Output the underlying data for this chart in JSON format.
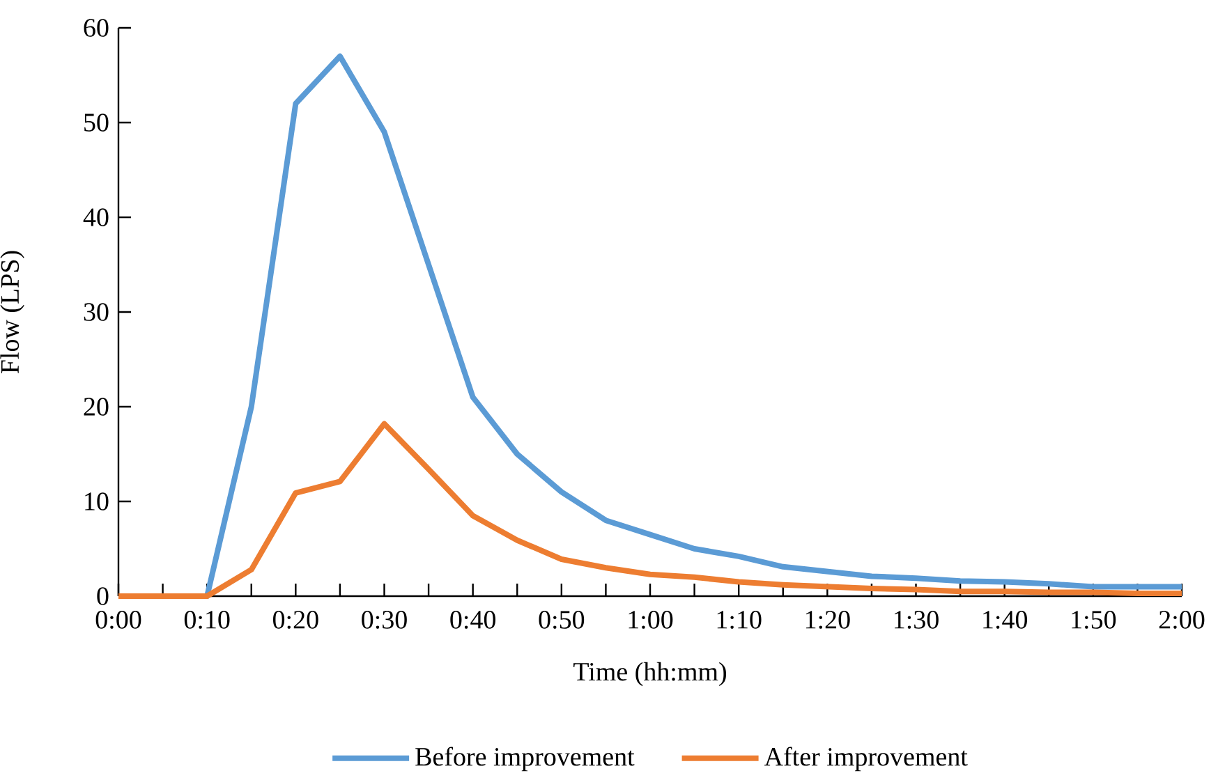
{
  "chart_data": {
    "type": "line",
    "xlabel": "Time (hh:mm)",
    "ylabel": "Flow (LPS)",
    "x": [
      0,
      0.08333,
      0.16667,
      0.25,
      0.33333,
      0.41667,
      0.5,
      0.58333,
      0.66667,
      0.75,
      0.83333,
      0.91667,
      1,
      1.08333,
      1.16667,
      1.25,
      1.33333,
      1.41667,
      1.5,
      1.58333,
      1.66667,
      1.75,
      1.83333,
      1.91667,
      2
    ],
    "series": [
      {
        "name": "Before improvement",
        "color": "#5b9bd5",
        "values": [
          0,
          0,
          0,
          20,
          52,
          57,
          49,
          35,
          21,
          15,
          11,
          8,
          6.5,
          5,
          4.2,
          3.1,
          2.6,
          2.1,
          1.9,
          1.6,
          1.5,
          1.3,
          1,
          1,
          1
        ]
      },
      {
        "name": "After improvement",
        "color": "#ed7d31",
        "values": [
          0,
          0,
          0,
          2.8,
          10.9,
          12.1,
          18.2,
          13.4,
          8.5,
          5.9,
          3.9,
          3,
          2.3,
          2,
          1.5,
          1.2,
          1,
          0.8,
          0.7,
          0.5,
          0.5,
          0.4,
          0.4,
          0.3,
          0.3
        ]
      }
    ],
    "xlim": [
      0,
      2
    ],
    "ylim": [
      0,
      60
    ],
    "xticks": [
      {
        "value": 0,
        "label": "0:00"
      },
      {
        "value": 0.08333,
        "label": null
      },
      {
        "value": 0.16667,
        "label": "0:10"
      },
      {
        "value": 0.25,
        "label": null
      },
      {
        "value": 0.33333,
        "label": "0:20"
      },
      {
        "value": 0.41667,
        "label": null
      },
      {
        "value": 0.5,
        "label": "0:30"
      },
      {
        "value": 0.58333,
        "label": null
      },
      {
        "value": 0.66667,
        "label": "0:40"
      },
      {
        "value": 0.75,
        "label": null
      },
      {
        "value": 0.83333,
        "label": "0:50"
      },
      {
        "value": 0.91667,
        "label": null
      },
      {
        "value": 1,
        "label": "1:00"
      },
      {
        "value": 1.08333,
        "label": null
      },
      {
        "value": 1.16667,
        "label": "1:10"
      },
      {
        "value": 1.25,
        "label": null
      },
      {
        "value": 1.33333,
        "label": "1:20"
      },
      {
        "value": 1.41667,
        "label": null
      },
      {
        "value": 1.5,
        "label": "1:30"
      },
      {
        "value": 1.58333,
        "label": null
      },
      {
        "value": 1.66667,
        "label": "1:40"
      },
      {
        "value": 1.75,
        "label": null
      },
      {
        "value": 1.83333,
        "label": "1:50"
      },
      {
        "value": 1.91667,
        "label": null
      },
      {
        "value": 2,
        "label": "2:00"
      }
    ],
    "yticks": [
      0,
      10,
      20,
      30,
      40,
      50,
      60
    ],
    "grid": false,
    "legend": "bottom",
    "marker": "none",
    "line_style": "solid"
  }
}
